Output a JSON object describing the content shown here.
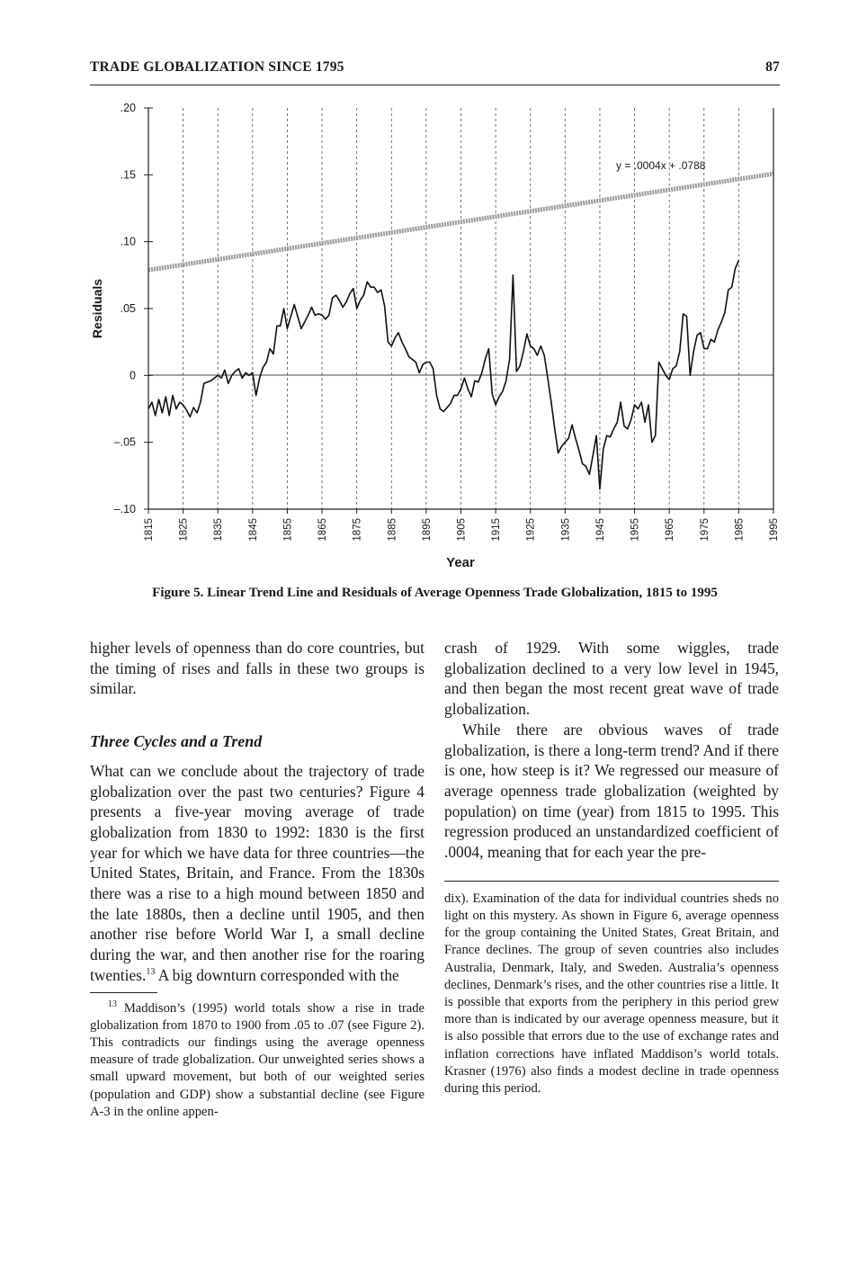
{
  "header": {
    "running_title": "TRADE GLOBALIZATION SINCE 1795",
    "page_number": "87"
  },
  "figure": {
    "caption": "Figure 5. Linear Trend Line and Residuals of Average Openness Trade Globalization, 1815 to 1995",
    "trend_equation": "y = .0004x + .0788"
  },
  "chart_data": {
    "type": "line",
    "title": "",
    "xlabel": "Year",
    "ylabel": "Residuals",
    "xlim": [
      1815,
      1995
    ],
    "ylim": [
      -0.1,
      0.2
    ],
    "y_ticks": [
      ".20",
      ".15",
      ".10",
      ".05",
      "0",
      "–.05",
      "–.10"
    ],
    "y_tick_values": [
      0.2,
      0.15,
      0.1,
      0.05,
      0,
      -0.05,
      -0.1
    ],
    "x_ticks": [
      "1815",
      "1825",
      "1835",
      "1845",
      "1855",
      "1865",
      "1875",
      "1885",
      "1895",
      "1905",
      "1915",
      "1925",
      "1935",
      "1945",
      "1955",
      "1965",
      "1975",
      "1985",
      "1995"
    ],
    "grid": "vertical dashed",
    "series": [
      {
        "name": "",
        "style": "trend",
        "x": [
          1815,
          1995
        ],
        "y": [
          0.0788,
          0.1508
        ]
      },
      {
        "name": "",
        "style": "residuals",
        "points": [
          [
            1815,
            -0.025
          ],
          [
            1816,
            -0.02
          ],
          [
            1817,
            -0.03
          ],
          [
            1818,
            -0.018
          ],
          [
            1819,
            -0.028
          ],
          [
            1820,
            -0.016
          ],
          [
            1821,
            -0.03
          ],
          [
            1822,
            -0.015
          ],
          [
            1823,
            -0.025
          ],
          [
            1824,
            -0.02
          ],
          [
            1825,
            -0.022
          ],
          [
            1826,
            -0.026
          ],
          [
            1827,
            -0.031
          ],
          [
            1828,
            -0.024
          ],
          [
            1829,
            -0.028
          ],
          [
            1830,
            -0.02
          ],
          [
            1831,
            -0.006
          ],
          [
            1832,
            -0.005
          ],
          [
            1833,
            -0.004
          ],
          [
            1834,
            -0.002
          ],
          [
            1835,
            0.0
          ],
          [
            1836,
            -0.002
          ],
          [
            1837,
            0.004
          ],
          [
            1838,
            -0.006
          ],
          [
            1839,
            0.0
          ],
          [
            1840,
            0.003
          ],
          [
            1841,
            0.005
          ],
          [
            1842,
            -0.002
          ],
          [
            1843,
            0.002
          ],
          [
            1844,
            0.0
          ],
          [
            1845,
            0.002
          ],
          [
            1846,
            -0.015
          ],
          [
            1847,
            -0.002
          ],
          [
            1848,
            0.006
          ],
          [
            1849,
            0.01
          ],
          [
            1850,
            0.02
          ],
          [
            1851,
            0.016
          ],
          [
            1852,
            0.037
          ],
          [
            1853,
            0.037
          ],
          [
            1854,
            0.05
          ],
          [
            1855,
            0.035
          ],
          [
            1856,
            0.044
          ],
          [
            1857,
            0.053
          ],
          [
            1858,
            0.044
          ],
          [
            1859,
            0.035
          ],
          [
            1860,
            0.04
          ],
          [
            1861,
            0.045
          ],
          [
            1862,
            0.051
          ],
          [
            1863,
            0.045
          ],
          [
            1864,
            0.046
          ],
          [
            1865,
            0.045
          ],
          [
            1866,
            0.042
          ],
          [
            1867,
            0.045
          ],
          [
            1868,
            0.058
          ],
          [
            1869,
            0.06
          ],
          [
            1870,
            0.056
          ],
          [
            1871,
            0.051
          ],
          [
            1872,
            0.055
          ],
          [
            1873,
            0.061
          ],
          [
            1874,
            0.065
          ],
          [
            1875,
            0.05
          ],
          [
            1876,
            0.056
          ],
          [
            1877,
            0.06
          ],
          [
            1878,
            0.07
          ],
          [
            1879,
            0.066
          ],
          [
            1880,
            0.066
          ],
          [
            1881,
            0.062
          ],
          [
            1882,
            0.064
          ],
          [
            1883,
            0.052
          ],
          [
            1884,
            0.025
          ],
          [
            1885,
            0.022
          ],
          [
            1886,
            0.028
          ],
          [
            1887,
            0.032
          ],
          [
            1888,
            0.025
          ],
          [
            1889,
            0.02
          ],
          [
            1890,
            0.014
          ],
          [
            1891,
            0.012
          ],
          [
            1892,
            0.01
          ],
          [
            1893,
            0.002
          ],
          [
            1894,
            0.008
          ],
          [
            1895,
            0.01
          ],
          [
            1896,
            0.01
          ],
          [
            1897,
            0.005
          ],
          [
            1898,
            -0.015
          ],
          [
            1899,
            -0.025
          ],
          [
            1900,
            -0.027
          ],
          [
            1901,
            -0.024
          ],
          [
            1902,
            -0.021
          ],
          [
            1903,
            -0.015
          ],
          [
            1904,
            -0.015
          ],
          [
            1905,
            -0.01
          ],
          [
            1906,
            -0.002
          ],
          [
            1907,
            -0.01
          ],
          [
            1908,
            -0.016
          ],
          [
            1909,
            -0.004
          ],
          [
            1910,
            -0.005
          ],
          [
            1911,
            0.002
          ],
          [
            1912,
            0.012
          ],
          [
            1913,
            0.02
          ],
          [
            1914,
            -0.014
          ],
          [
            1915,
            -0.022
          ],
          [
            1916,
            -0.016
          ],
          [
            1917,
            -0.012
          ],
          [
            1918,
            -0.004
          ],
          [
            1919,
            0.012
          ],
          [
            1920,
            0.075
          ],
          [
            1921,
            0.003
          ],
          [
            1922,
            0.007
          ],
          [
            1923,
            0.018
          ],
          [
            1924,
            0.031
          ],
          [
            1925,
            0.022
          ],
          [
            1926,
            0.02
          ],
          [
            1927,
            0.015
          ],
          [
            1928,
            0.022
          ],
          [
            1929,
            0.015
          ],
          [
            1930,
            -0.002
          ],
          [
            1931,
            -0.02
          ],
          [
            1932,
            -0.04
          ],
          [
            1933,
            -0.058
          ],
          [
            1934,
            -0.053
          ],
          [
            1935,
            -0.05
          ],
          [
            1936,
            -0.047
          ],
          [
            1937,
            -0.037
          ],
          [
            1938,
            -0.047
          ],
          [
            1939,
            -0.056
          ],
          [
            1940,
            -0.066
          ],
          [
            1941,
            -0.068
          ],
          [
            1942,
            -0.074
          ],
          [
            1943,
            -0.06
          ],
          [
            1944,
            -0.045
          ],
          [
            1945,
            -0.085
          ],
          [
            1946,
            -0.055
          ],
          [
            1947,
            -0.045
          ],
          [
            1948,
            -0.046
          ],
          [
            1949,
            -0.04
          ],
          [
            1950,
            -0.035
          ],
          [
            1951,
            -0.02
          ],
          [
            1952,
            -0.038
          ],
          [
            1953,
            -0.04
          ],
          [
            1954,
            -0.033
          ],
          [
            1955,
            -0.022
          ],
          [
            1956,
            -0.025
          ],
          [
            1957,
            -0.02
          ],
          [
            1958,
            -0.035
          ],
          [
            1959,
            -0.022
          ],
          [
            1960,
            -0.05
          ],
          [
            1961,
            -0.045
          ],
          [
            1962,
            0.01
          ],
          [
            1963,
            0.005
          ],
          [
            1964,
            0.0
          ],
          [
            1965,
            -0.003
          ],
          [
            1966,
            0.005
          ],
          [
            1967,
            0.007
          ],
          [
            1968,
            0.018
          ],
          [
            1969,
            0.046
          ],
          [
            1970,
            0.044
          ],
          [
            1971,
            0.0
          ],
          [
            1972,
            0.018
          ],
          [
            1973,
            0.03
          ],
          [
            1974,
            0.032
          ],
          [
            1975,
            0.02
          ],
          [
            1976,
            0.02
          ],
          [
            1977,
            0.027
          ],
          [
            1978,
            0.025
          ],
          [
            1979,
            0.034
          ],
          [
            1980,
            0.04
          ],
          [
            1981,
            0.047
          ],
          [
            1982,
            0.064
          ],
          [
            1983,
            0.066
          ],
          [
            1984,
            0.08
          ],
          [
            1985,
            0.086
          ]
        ]
      }
    ]
  },
  "body": {
    "left_col": {
      "p1": "higher levels of openness than do core countries, but the timing of rises and falls in these two groups is similar.",
      "heading": "Three Cycles and a Trend",
      "p2_before_ref": "What can we conclude about the trajectory of trade globalization over the past two centuries? Figure 4 presents a five-year moving average of trade globalization from 1830 to 1992: 1830 is the first year for which we have data for three countries—the United States, Britain, and France. From the 1830s there was a rise to a high mound between 1850 and the late 1880s, then a decline until 1905, and then another rise before World War I, a small decline during the war, and then another rise for the roaring twenties.",
      "p2_ref": "13",
      "p2_after_ref": " A big downturn corresponded with the",
      "footnote_marker": "13",
      "footnote_text": " Maddison’s (1995) world totals show a rise in trade globalization from 1870 to 1900 from .05 to .07 (see Figure 2). This contradicts our findings using the average openness measure of trade globalization. Our unweighted series shows a small upward movement, but both of our weighted series (population and GDP) show a substantial decline (see Figure A-3 in the online appen-"
    },
    "right_col": {
      "p1": "crash of 1929. With some wiggles, trade globalization declined to a very low level in 1945, and then began the most recent great wave of trade globalization.",
      "p2": "While there are obvious waves of trade globalization, is there a long-term trend? And if there is one, how steep is it? We regressed our measure of average openness trade globalization (weighted by population) on time (year) from 1815 to 1995. This regression produced an unstandardized coefficient of .0004, meaning that for each year the pre-",
      "footnote_cont": "dix). Examination of the data for individual countries sheds no light on this mystery. As shown in Figure 6, average openness for the group containing the United States, Great Britain, and France declines. The group of seven countries also includes Australia, Denmark, Italy, and Sweden. Australia’s openness declines, Denmark’s rises, and the other countries rise a little. It is possible that exports from the periphery in this period grew more than is indicated by our average openness measure, but it is also possible that errors due to the use of exchange rates and inflation corrections have inflated Maddison’s world totals. Krasner (1976) also finds a modest decline in trade openness during this period."
    }
  }
}
